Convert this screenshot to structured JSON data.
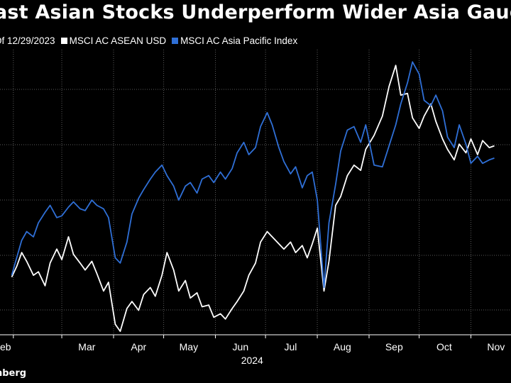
{
  "title": "ast Asian Stocks Underperform Wider Asia Gauge",
  "legend": {
    "prefix": "Of 12/29/2023",
    "items": [
      {
        "label": "MSCI AC ASEAN USD",
        "color": "#ffffff"
      },
      {
        "label": "MSCI AC Asia Pacific Index",
        "color": "#2f6fd6"
      }
    ]
  },
  "source": "nberg",
  "chart_data": {
    "type": "line",
    "x_tick_labels": [
      "eb",
      "Mar",
      "Apr",
      "May",
      "Jun",
      "Jul",
      "Aug",
      "Sep",
      "Oct",
      "Nov"
    ],
    "x_year_label": "2024",
    "grid": "vertical-dotted and horizontal-dotted",
    "series": [
      {
        "name": "MSCI AC ASEAN USD",
        "color": "#ffffff",
        "points": [
          [
            "2024-01-31",
            0.2
          ],
          [
            "2024-02-03",
            0.8
          ],
          [
            "2024-02-06",
            1.6
          ],
          [
            "2024-02-09",
            1.1
          ],
          [
            "2024-02-13",
            0.3
          ],
          [
            "2024-02-16",
            0.5
          ],
          [
            "2024-02-20",
            -0.3
          ],
          [
            "2024-02-23",
            1.0
          ],
          [
            "2024-02-27",
            1.8
          ],
          [
            "2024-03-01",
            1.2
          ],
          [
            "2024-03-05",
            2.5
          ],
          [
            "2024-03-08",
            1.5
          ],
          [
            "2024-03-12",
            1.0
          ],
          [
            "2024-03-15",
            0.6
          ],
          [
            "2024-03-19",
            1.1
          ],
          [
            "2024-03-22",
            0.4
          ],
          [
            "2024-03-26",
            -0.6
          ],
          [
            "2024-03-29",
            -0.1
          ],
          [
            "2024-04-02",
            -2.5
          ],
          [
            "2024-04-05",
            -2.9
          ],
          [
            "2024-04-09",
            -1.6
          ],
          [
            "2024-04-12",
            -1.2
          ],
          [
            "2024-04-16",
            -1.7
          ],
          [
            "2024-04-19",
            -0.8
          ],
          [
            "2024-04-23",
            -0.4
          ],
          [
            "2024-04-26",
            -0.9
          ],
          [
            "2024-04-30",
            0.3
          ],
          [
            "2024-05-03",
            1.6
          ],
          [
            "2024-05-07",
            0.6
          ],
          [
            "2024-05-10",
            -0.6
          ],
          [
            "2024-05-14",
            0.0
          ],
          [
            "2024-05-17",
            -1.0
          ],
          [
            "2024-05-21",
            -0.7
          ],
          [
            "2024-05-24",
            -1.5
          ],
          [
            "2024-05-28",
            -1.4
          ],
          [
            "2024-05-31",
            -2.1
          ],
          [
            "2024-06-04",
            -1.9
          ],
          [
            "2024-06-07",
            -2.2
          ],
          [
            "2024-06-11",
            -1.6
          ],
          [
            "2024-06-14",
            -1.2
          ],
          [
            "2024-06-18",
            -0.6
          ],
          [
            "2024-06-21",
            0.3
          ],
          [
            "2024-06-25",
            1.0
          ],
          [
            "2024-06-28",
            2.2
          ],
          [
            "2024-07-02",
            2.8
          ],
          [
            "2024-07-05",
            2.5
          ],
          [
            "2024-07-09",
            2.1
          ],
          [
            "2024-07-12",
            1.8
          ],
          [
            "2024-07-16",
            2.2
          ],
          [
            "2024-07-19",
            1.6
          ],
          [
            "2024-07-23",
            2.0
          ],
          [
            "2024-07-26",
            1.3
          ],
          [
            "2024-07-29",
            2.1
          ],
          [
            "2024-08-01",
            3.0
          ],
          [
            "2024-08-05",
            -0.6
          ],
          [
            "2024-08-08",
            1.1
          ],
          [
            "2024-08-12",
            4.3
          ],
          [
            "2024-08-15",
            4.8
          ],
          [
            "2024-08-19",
            6.0
          ],
          [
            "2024-08-23",
            6.6
          ],
          [
            "2024-08-27",
            6.3
          ],
          [
            "2024-08-30",
            7.5
          ],
          [
            "2024-09-04",
            8.3
          ],
          [
            "2024-09-09",
            9.4
          ],
          [
            "2024-09-13",
            11.1
          ],
          [
            "2024-09-17",
            12.3
          ],
          [
            "2024-09-20",
            10.6
          ],
          [
            "2024-09-24",
            10.7
          ],
          [
            "2024-09-27",
            9.3
          ],
          [
            "2024-10-01",
            8.7
          ],
          [
            "2024-10-04",
            9.4
          ],
          [
            "2024-10-08",
            10.1
          ],
          [
            "2024-10-11",
            9.1
          ],
          [
            "2024-10-15",
            8.1
          ],
          [
            "2024-10-18",
            7.5
          ],
          [
            "2024-10-22",
            6.9
          ],
          [
            "2024-10-25",
            7.8
          ],
          [
            "2024-10-29",
            7.3
          ],
          [
            "2024-11-01",
            8.1
          ],
          [
            "2024-11-05",
            7.2
          ],
          [
            "2024-11-08",
            8.0
          ],
          [
            "2024-11-12",
            7.6
          ],
          [
            "2024-11-15",
            7.7
          ]
        ]
      },
      {
        "name": "MSCI AC Asia Pacific Index",
        "color": "#2f6fd6",
        "points": [
          [
            "2024-01-31",
            0.3
          ],
          [
            "2024-02-03",
            1.3
          ],
          [
            "2024-02-06",
            2.3
          ],
          [
            "2024-02-09",
            2.8
          ],
          [
            "2024-02-13",
            2.5
          ],
          [
            "2024-02-16",
            3.3
          ],
          [
            "2024-02-20",
            3.9
          ],
          [
            "2024-02-23",
            4.3
          ],
          [
            "2024-02-27",
            3.6
          ],
          [
            "2024-03-01",
            3.7
          ],
          [
            "2024-03-05",
            4.2
          ],
          [
            "2024-03-08",
            4.5
          ],
          [
            "2024-03-12",
            4.1
          ],
          [
            "2024-03-15",
            4.0
          ],
          [
            "2024-03-19",
            4.6
          ],
          [
            "2024-03-22",
            4.3
          ],
          [
            "2024-03-26",
            4.1
          ],
          [
            "2024-03-29",
            3.6
          ],
          [
            "2024-04-02",
            1.3
          ],
          [
            "2024-04-05",
            1.0
          ],
          [
            "2024-04-09",
            2.2
          ],
          [
            "2024-04-12",
            3.8
          ],
          [
            "2024-04-16",
            4.7
          ],
          [
            "2024-04-19",
            5.2
          ],
          [
            "2024-04-23",
            5.8
          ],
          [
            "2024-04-26",
            6.2
          ],
          [
            "2024-04-30",
            6.6
          ],
          [
            "2024-05-03",
            6.0
          ],
          [
            "2024-05-07",
            5.4
          ],
          [
            "2024-05-10",
            4.6
          ],
          [
            "2024-05-14",
            5.4
          ],
          [
            "2024-05-17",
            5.6
          ],
          [
            "2024-05-21",
            5.0
          ],
          [
            "2024-05-24",
            5.8
          ],
          [
            "2024-05-28",
            6.0
          ],
          [
            "2024-05-31",
            5.6
          ],
          [
            "2024-06-04",
            6.2
          ],
          [
            "2024-06-07",
            5.8
          ],
          [
            "2024-06-11",
            6.4
          ],
          [
            "2024-06-14",
            7.3
          ],
          [
            "2024-06-18",
            7.9
          ],
          [
            "2024-06-21",
            7.2
          ],
          [
            "2024-06-25",
            7.6
          ],
          [
            "2024-06-28",
            8.8
          ],
          [
            "2024-07-02",
            9.6
          ],
          [
            "2024-07-05",
            8.9
          ],
          [
            "2024-07-09",
            7.6
          ],
          [
            "2024-07-12",
            6.8
          ],
          [
            "2024-07-16",
            6.1
          ],
          [
            "2024-07-19",
            6.5
          ],
          [
            "2024-07-23",
            5.3
          ],
          [
            "2024-07-26",
            6.0
          ],
          [
            "2024-07-29",
            6.2
          ],
          [
            "2024-08-01",
            4.6
          ],
          [
            "2024-08-05",
            -0.4
          ],
          [
            "2024-08-08",
            3.3
          ],
          [
            "2024-08-12",
            5.5
          ],
          [
            "2024-08-15",
            7.4
          ],
          [
            "2024-08-19",
            8.6
          ],
          [
            "2024-08-23",
            8.8
          ],
          [
            "2024-08-27",
            7.9
          ],
          [
            "2024-08-30",
            8.9
          ],
          [
            "2024-09-04",
            6.6
          ],
          [
            "2024-09-09",
            6.5
          ],
          [
            "2024-09-13",
            7.7
          ],
          [
            "2024-09-17",
            8.9
          ],
          [
            "2024-09-20",
            10.1
          ],
          [
            "2024-09-24",
            11.3
          ],
          [
            "2024-09-27",
            12.5
          ],
          [
            "2024-10-01",
            11.8
          ],
          [
            "2024-10-04",
            10.3
          ],
          [
            "2024-10-08",
            10.0
          ],
          [
            "2024-10-11",
            10.6
          ],
          [
            "2024-10-15",
            9.7
          ],
          [
            "2024-10-18",
            8.2
          ],
          [
            "2024-10-22",
            7.6
          ],
          [
            "2024-10-25",
            8.9
          ],
          [
            "2024-10-29",
            7.8
          ],
          [
            "2024-11-01",
            6.7
          ],
          [
            "2024-11-05",
            7.1
          ],
          [
            "2024-11-08",
            6.7
          ],
          [
            "2024-11-12",
            6.9
          ],
          [
            "2024-11-15",
            7.0
          ]
        ]
      }
    ]
  }
}
